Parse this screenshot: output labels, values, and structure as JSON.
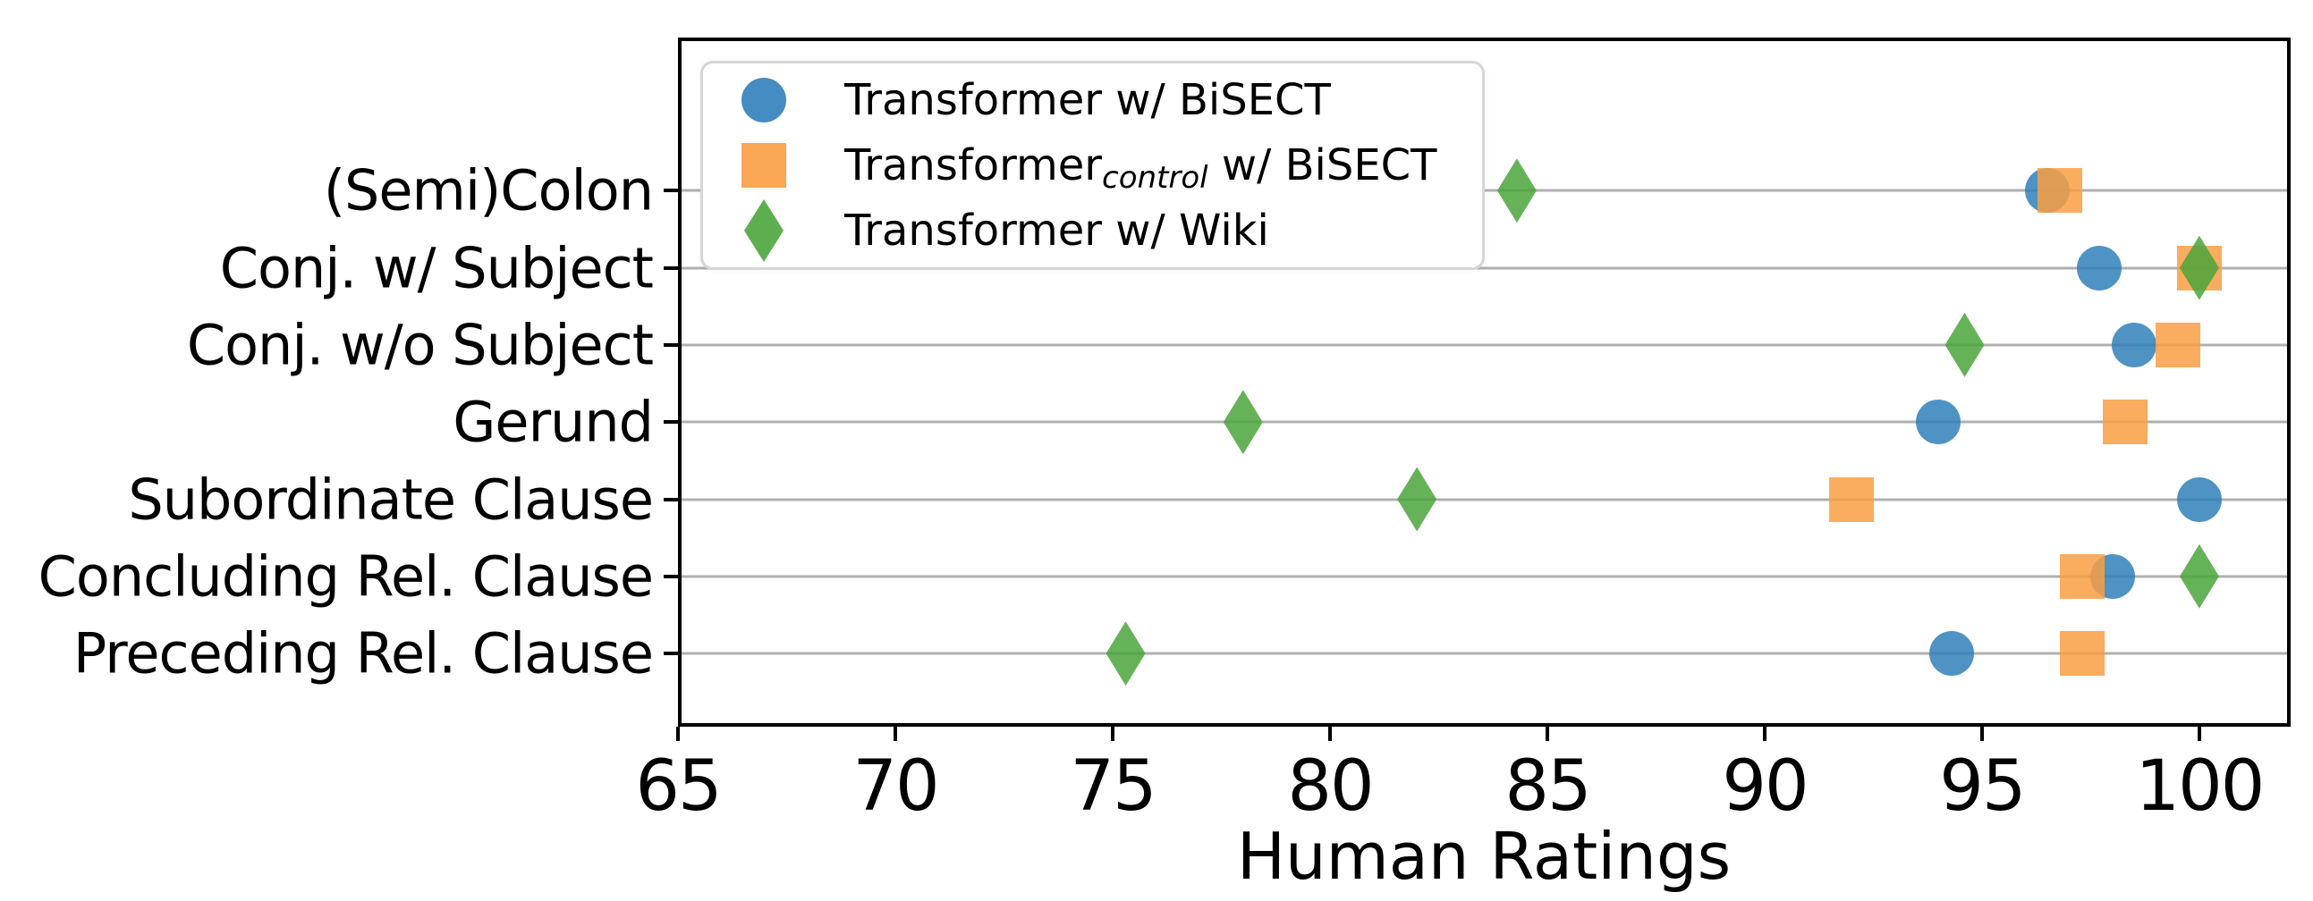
{
  "chart_data": {
    "type": "scatter",
    "xlabel": "Human Ratings",
    "xlim": [
      65,
      102.1
    ],
    "xticks": [
      65,
      70,
      75,
      80,
      85,
      90,
      95,
      100
    ],
    "grid": "horizontal",
    "gridline_color": "#b0b0b0",
    "spine_color": "#000000",
    "background_color": "#ffffff",
    "legend_position": "upper left",
    "categories": [
      "(Semi)Colon",
      "Conj. w/ Subject",
      "Conj. w/o Subject",
      "Gerund",
      "Subordinate Clause",
      "Concluding Rel. Clause",
      "Preceding Rel. Clause"
    ],
    "series": [
      {
        "name": "Transformer w/ BiSECT",
        "name_parts": {
          "pre": "Transformer w/ BiSECT",
          "sub": "",
          "post": ""
        },
        "marker": "circle",
        "color": "#3080ba",
        "values": [
          96.5,
          97.7,
          98.5,
          94.0,
          100.0,
          98.0,
          94.3
        ]
      },
      {
        "name": "Transformer_control w/ BiSECT",
        "name_parts": {
          "pre": "Transformer",
          "sub": "control",
          "post": " w/ BiSECT"
        },
        "marker": "square",
        "color": "#f99f42",
        "values": [
          96.8,
          100.0,
          99.5,
          98.3,
          92.0,
          97.3,
          97.3
        ]
      },
      {
        "name": "Transformer w/ Wiki",
        "name_parts": {
          "pre": "Transformer w/ Wiki",
          "sub": "",
          "post": ""
        },
        "marker": "diamond",
        "color": "#4ba53c",
        "values": [
          84.3,
          100.0,
          94.6,
          78.0,
          82.0,
          100.0,
          75.3
        ]
      }
    ]
  }
}
